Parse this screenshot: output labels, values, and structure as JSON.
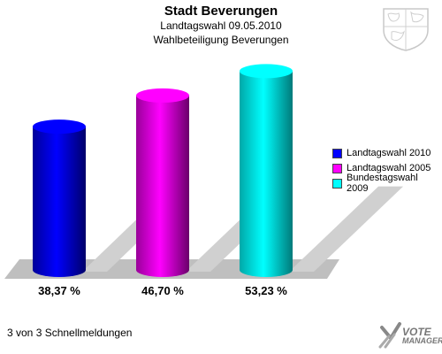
{
  "header": {
    "title": "Stadt Beverungen",
    "subtitle": "Landtagswahl 09.05.2010",
    "subtitle2": "Wahlbeteiligung Beverungen"
  },
  "chart_data": {
    "type": "bar",
    "categories": [
      "Landtagswahl 2010",
      "Landtagswahl 2005",
      "Bundestagswahl 2009"
    ],
    "values": [
      38.37,
      46.7,
      53.23
    ],
    "value_labels": [
      "38,37 %",
      "46,70 %",
      "53,23 %"
    ],
    "colors": [
      "#0000ff",
      "#ff00ff",
      "#00ffff"
    ],
    "legend_position": "right",
    "grid": false
  },
  "legend": {
    "items": [
      {
        "label": "Landtagswahl 2010",
        "color": "#0000ff"
      },
      {
        "label": "Landtagswahl 2005",
        "color": "#ff00ff"
      },
      {
        "label": "Bundestagswahl 2009",
        "color": "#00ffff"
      }
    ]
  },
  "footer": {
    "status": "3 von 3 Schnellmeldungen",
    "logo_text_1": "VOTE",
    "logo_text_2": "MANAGER"
  },
  "icons": {
    "coat": "coat-of-arms-icon",
    "logo": "vote-manager-logo-icon"
  }
}
